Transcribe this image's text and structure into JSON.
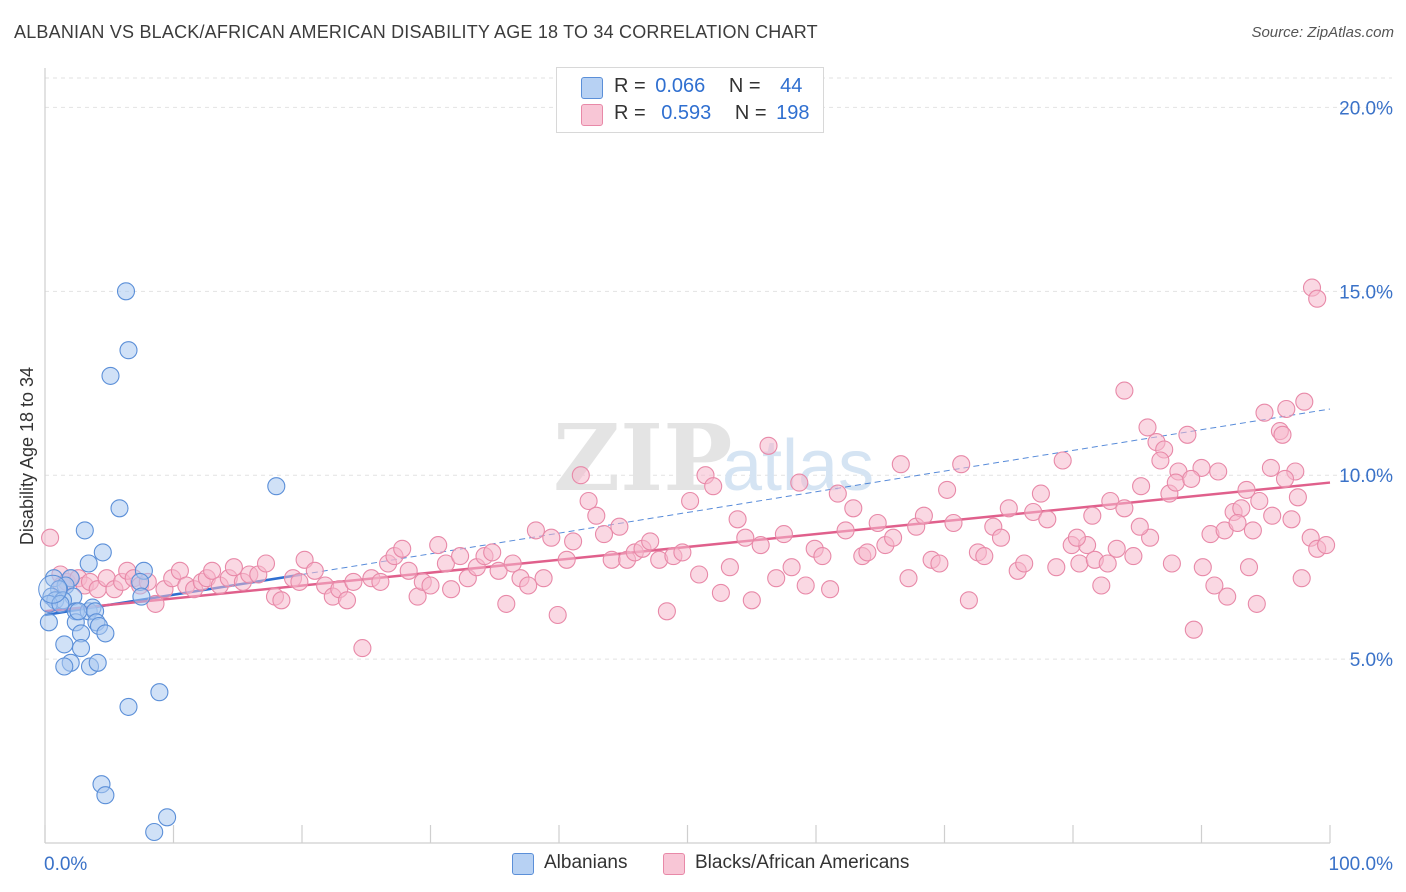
{
  "header": {
    "title": "ALBANIAN VS BLACK/AFRICAN AMERICAN DISABILITY AGE 18 TO 34 CORRELATION CHART",
    "source": "Source: ZipAtlas.com"
  },
  "legend_top": {
    "rows": [
      {
        "r_label": "R =",
        "r_value": "0.066",
        "n_label": "N =",
        "n_value": "44"
      },
      {
        "r_label": "R =",
        "r_value": "0.593",
        "n_label": "N =",
        "n_value": "198"
      }
    ]
  },
  "watermark": {
    "zip": "ZIP",
    "atlas": "atlas"
  },
  "colors": {
    "albanian_fill": "#a9c8f0",
    "albanian_stroke": "#5b8fd8",
    "albanian_line": "#2f6fd0",
    "black_fill": "#f5b8cc",
    "black_stroke": "#e889a8",
    "black_line": "#e0608c",
    "tick_label": "#3a72c8",
    "grid": "#e2e2e2"
  },
  "chart_data": {
    "type": "scatter",
    "title": "ALBANIAN VS BLACK/AFRICAN AMERICAN DISABILITY AGE 18 TO 34 CORRELATION CHART",
    "xlabel": "",
    "ylabel": "Disability Age 18 to 34",
    "xlim": [
      0,
      100
    ],
    "ylim": [
      0,
      20.8
    ],
    "x_ticks": [
      "0.0%",
      "100.0%"
    ],
    "y_ticks": [
      {
        "value": 5,
        "label": "5.0%"
      },
      {
        "value": 10,
        "label": "10.0%"
      },
      {
        "value": 15,
        "label": "15.0%"
      },
      {
        "value": 20,
        "label": "20.0%"
      }
    ],
    "grid": true,
    "legend_position": "bottom",
    "series": [
      {
        "name": "Albanians",
        "r": 0.066,
        "n": 44,
        "trend": {
          "x": [
            0,
            20
          ],
          "y": [
            6.2,
            7.3
          ],
          "style": "solid"
        },
        "trend_extension": {
          "x": [
            20,
            100
          ],
          "y": [
            7.3,
            11.8
          ],
          "style": "dashed"
        },
        "points": [
          [
            6.3,
            15.0
          ],
          [
            6.5,
            13.4
          ],
          [
            5.1,
            12.7
          ],
          [
            18.0,
            9.7
          ],
          [
            5.8,
            9.1
          ],
          [
            3.1,
            8.5
          ],
          [
            4.5,
            7.9
          ],
          [
            3.4,
            7.6
          ],
          [
            7.7,
            7.4
          ],
          [
            0.7,
            7.2
          ],
          [
            2.0,
            7.2
          ],
          [
            1.6,
            7.0
          ],
          [
            7.4,
            7.1
          ],
          [
            1.1,
            6.9
          ],
          [
            0.5,
            6.7
          ],
          [
            2.2,
            6.7
          ],
          [
            7.5,
            6.7
          ],
          [
            0.8,
            6.6
          ],
          [
            1.4,
            6.6
          ],
          [
            0.3,
            6.5
          ],
          [
            1.2,
            6.5
          ],
          [
            2.4,
            6.3
          ],
          [
            3.4,
            6.3
          ],
          [
            3.7,
            6.4
          ],
          [
            3.9,
            6.3
          ],
          [
            0.3,
            6.0
          ],
          [
            2.4,
            6.0
          ],
          [
            4.0,
            6.0
          ],
          [
            4.2,
            5.9
          ],
          [
            2.8,
            5.7
          ],
          [
            4.7,
            5.7
          ],
          [
            1.5,
            5.4
          ],
          [
            2.8,
            5.3
          ],
          [
            2.0,
            4.9
          ],
          [
            1.5,
            4.8
          ],
          [
            3.5,
            4.8
          ],
          [
            4.1,
            4.9
          ],
          [
            8.9,
            4.1
          ],
          [
            6.5,
            3.7
          ],
          [
            4.4,
            1.6
          ],
          [
            4.7,
            1.3
          ],
          [
            9.5,
            0.7
          ],
          [
            8.5,
            0.3
          ],
          [
            2.6,
            6.3
          ]
        ]
      },
      {
        "name": "Blacks/African Americans",
        "r": 0.593,
        "n": 198,
        "trend": {
          "x": [
            0,
            100
          ],
          "y": [
            6.3,
            9.8
          ],
          "style": "solid"
        },
        "points": [
          [
            0.4,
            8.3
          ],
          [
            1.2,
            7.3
          ],
          [
            1.3,
            7.0
          ],
          [
            1.7,
            7.1
          ],
          [
            2.0,
            7.2
          ],
          [
            2.6,
            7.2
          ],
          [
            3.1,
            7.0
          ],
          [
            3.5,
            7.1
          ],
          [
            4.1,
            6.9
          ],
          [
            4.8,
            7.2
          ],
          [
            5.4,
            6.9
          ],
          [
            6.0,
            7.1
          ],
          [
            6.4,
            7.4
          ],
          [
            6.9,
            7.2
          ],
          [
            7.4,
            7.0
          ],
          [
            8.0,
            7.1
          ],
          [
            8.6,
            6.5
          ],
          [
            9.3,
            6.9
          ],
          [
            9.9,
            7.2
          ],
          [
            10.5,
            7.4
          ],
          [
            11.0,
            7.0
          ],
          [
            11.6,
            6.9
          ],
          [
            12.2,
            7.1
          ],
          [
            12.6,
            7.2
          ],
          [
            13.0,
            7.4
          ],
          [
            13.6,
            7.0
          ],
          [
            14.3,
            7.2
          ],
          [
            14.7,
            7.5
          ],
          [
            15.4,
            7.1
          ],
          [
            15.9,
            7.3
          ],
          [
            16.6,
            7.3
          ],
          [
            17.2,
            7.6
          ],
          [
            17.9,
            6.7
          ],
          [
            18.4,
            6.6
          ],
          [
            19.3,
            7.2
          ],
          [
            19.8,
            7.1
          ],
          [
            20.2,
            7.7
          ],
          [
            21.0,
            7.4
          ],
          [
            21.8,
            7.0
          ],
          [
            22.4,
            6.7
          ],
          [
            22.9,
            6.9
          ],
          [
            23.5,
            6.6
          ],
          [
            24.0,
            7.1
          ],
          [
            24.7,
            5.3
          ],
          [
            25.4,
            7.2
          ],
          [
            26.1,
            7.1
          ],
          [
            26.7,
            7.6
          ],
          [
            27.2,
            7.8
          ],
          [
            27.8,
            8.0
          ],
          [
            28.3,
            7.4
          ],
          [
            29.0,
            6.7
          ],
          [
            29.4,
            7.1
          ],
          [
            30.0,
            7.0
          ],
          [
            30.6,
            8.1
          ],
          [
            31.2,
            7.6
          ],
          [
            31.6,
            6.9
          ],
          [
            32.3,
            7.8
          ],
          [
            32.9,
            7.2
          ],
          [
            33.6,
            7.5
          ],
          [
            34.2,
            7.8
          ],
          [
            34.8,
            7.9
          ],
          [
            35.3,
            7.4
          ],
          [
            35.9,
            6.5
          ],
          [
            36.4,
            7.6
          ],
          [
            37.0,
            7.2
          ],
          [
            37.6,
            7.0
          ],
          [
            38.2,
            8.5
          ],
          [
            38.8,
            7.2
          ],
          [
            39.4,
            8.3
          ],
          [
            39.9,
            6.2
          ],
          [
            40.6,
            7.7
          ],
          [
            41.1,
            8.2
          ],
          [
            41.7,
            10.0
          ],
          [
            42.3,
            9.3
          ],
          [
            42.9,
            8.9
          ],
          [
            43.5,
            8.4
          ],
          [
            44.1,
            7.7
          ],
          [
            44.7,
            8.6
          ],
          [
            45.3,
            7.7
          ],
          [
            45.9,
            7.9
          ],
          [
            46.5,
            8.0
          ],
          [
            47.1,
            8.2
          ],
          [
            47.8,
            7.7
          ],
          [
            48.4,
            6.3
          ],
          [
            48.9,
            7.8
          ],
          [
            49.6,
            7.9
          ],
          [
            50.2,
            9.3
          ],
          [
            50.9,
            7.3
          ],
          [
            51.4,
            10.0
          ],
          [
            52.0,
            9.7
          ],
          [
            52.6,
            6.8
          ],
          [
            53.3,
            7.5
          ],
          [
            53.9,
            8.8
          ],
          [
            54.5,
            8.3
          ],
          [
            55.0,
            6.6
          ],
          [
            55.7,
            8.1
          ],
          [
            56.3,
            10.8
          ],
          [
            56.9,
            7.2
          ],
          [
            57.5,
            8.4
          ],
          [
            58.1,
            7.5
          ],
          [
            58.7,
            9.8
          ],
          [
            59.2,
            7.0
          ],
          [
            59.9,
            8.0
          ],
          [
            60.5,
            7.8
          ],
          [
            61.1,
            6.9
          ],
          [
            61.7,
            9.5
          ],
          [
            62.3,
            8.5
          ],
          [
            62.9,
            9.1
          ],
          [
            63.6,
            7.8
          ],
          [
            64.0,
            7.9
          ],
          [
            64.8,
            8.7
          ],
          [
            65.4,
            8.1
          ],
          [
            66.0,
            8.3
          ],
          [
            66.6,
            10.3
          ],
          [
            67.2,
            7.2
          ],
          [
            67.8,
            8.6
          ],
          [
            68.4,
            8.9
          ],
          [
            69.0,
            7.7
          ],
          [
            69.6,
            7.6
          ],
          [
            70.2,
            9.6
          ],
          [
            70.7,
            8.7
          ],
          [
            71.3,
            10.3
          ],
          [
            71.9,
            6.6
          ],
          [
            72.6,
            7.9
          ],
          [
            73.1,
            7.8
          ],
          [
            73.8,
            8.6
          ],
          [
            74.4,
            8.3
          ],
          [
            75.0,
            9.1
          ],
          [
            75.7,
            7.4
          ],
          [
            76.2,
            7.6
          ],
          [
            76.9,
            9.0
          ],
          [
            77.5,
            9.5
          ],
          [
            78.0,
            8.8
          ],
          [
            78.7,
            7.5
          ],
          [
            79.2,
            10.4
          ],
          [
            79.9,
            8.1
          ],
          [
            80.5,
            7.6
          ],
          [
            81.1,
            8.1
          ],
          [
            81.7,
            7.7
          ],
          [
            82.2,
            7.0
          ],
          [
            82.9,
            9.3
          ],
          [
            83.4,
            8.0
          ],
          [
            84.0,
            12.3
          ],
          [
            84.7,
            7.8
          ],
          [
            85.3,
            9.7
          ],
          [
            85.8,
            11.3
          ],
          [
            86.5,
            10.9
          ],
          [
            87.1,
            10.7
          ],
          [
            87.7,
            7.6
          ],
          [
            88.2,
            10.1
          ],
          [
            88.9,
            11.1
          ],
          [
            89.4,
            5.8
          ],
          [
            90.1,
            7.5
          ],
          [
            90.7,
            8.4
          ],
          [
            91.3,
            10.1
          ],
          [
            91.8,
            8.5
          ],
          [
            92.5,
            9.0
          ],
          [
            93.1,
            9.1
          ],
          [
            93.7,
            7.5
          ],
          [
            94.3,
            6.5
          ],
          [
            94.9,
            11.7
          ],
          [
            95.4,
            10.2
          ],
          [
            96.1,
            11.2
          ],
          [
            96.6,
            11.8
          ],
          [
            97.3,
            10.1
          ],
          [
            97.8,
            7.2
          ],
          [
            98.5,
            8.3
          ],
          [
            99.0,
            8.0
          ],
          [
            99.7,
            8.1
          ],
          [
            90.0,
            10.2
          ],
          [
            91.0,
            7.0
          ],
          [
            92.0,
            6.7
          ],
          [
            86.0,
            8.3
          ],
          [
            84.0,
            9.1
          ],
          [
            80.3,
            8.3
          ],
          [
            81.5,
            8.9
          ],
          [
            82.7,
            7.6
          ],
          [
            85.2,
            8.6
          ],
          [
            86.8,
            10.4
          ],
          [
            87.5,
            9.5
          ],
          [
            88.0,
            9.8
          ],
          [
            89.2,
            9.9
          ],
          [
            93.5,
            9.6
          ],
          [
            94.5,
            9.3
          ],
          [
            95.5,
            8.9
          ],
          [
            96.5,
            9.9
          ],
          [
            97.5,
            9.4
          ],
          [
            92.8,
            8.7
          ],
          [
            94.0,
            8.5
          ],
          [
            96.3,
            11.1
          ],
          [
            97.0,
            8.8
          ],
          [
            98.0,
            12.0
          ],
          [
            98.6,
            15.1
          ],
          [
            99.0,
            14.8
          ]
        ]
      }
    ]
  },
  "legend_bottom": {
    "items": [
      {
        "label": "Albanians"
      },
      {
        "label": "Blacks/African Americans"
      }
    ]
  }
}
